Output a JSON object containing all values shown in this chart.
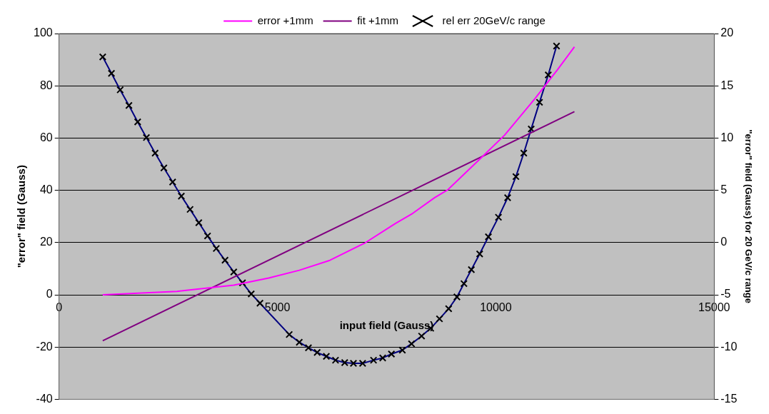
{
  "chart_data": {
    "type": "line",
    "xlabel": "input field (Gauss)",
    "ylabel": "\"error\" field (Gauss)",
    "y2label": "\"error\" field (Gauss) for 20 GeV/c range",
    "xlim": [
      0,
      15000
    ],
    "xticks": [
      0,
      5000,
      10000,
      15000
    ],
    "ylim": [
      -40,
      100
    ],
    "yticks": [
      -40,
      -20,
      0,
      20,
      40,
      60,
      80,
      100
    ],
    "y2lim": [
      -15,
      20
    ],
    "y2ticks": [
      -15,
      -10,
      -5,
      0,
      5,
      10,
      15,
      20
    ],
    "grid": "y",
    "legend": "top",
    "line_style": "solid",
    "series": [
      {
        "name": "error +1mm",
        "color": "#ff00ff",
        "marker": "none",
        "x": [
          1000,
          2700,
          4000,
          4800,
          5500,
          6200,
          7000,
          7700,
          8100,
          8600,
          8900,
          9700,
          10200,
          10900,
          11400,
          11800
        ],
        "values": [
          0,
          1.3,
          3.7,
          6.4,
          9.4,
          13.2,
          19.8,
          27.3,
          31.2,
          37.2,
          40.2,
          53,
          61.1,
          75.2,
          85.9,
          94.9
        ]
      },
      {
        "name": "fit +1mm",
        "color": "#800080",
        "marker": "none",
        "x": [
          1000,
          11800
        ],
        "values": [
          -17.6,
          70.1
        ]
      },
      {
        "name": "rel err 20GeV/c range",
        "color": "#000080",
        "marker": "cross",
        "axis": "y2",
        "x": [
          1000,
          1200,
          1400,
          1600,
          1800,
          2000,
          2200,
          2400,
          2600,
          2800,
          3000,
          3200,
          3400,
          3600,
          3800,
          4000,
          4200,
          4400,
          4600,
          5270,
          5500,
          5710,
          5910,
          6120,
          6330,
          6540,
          6740,
          6950,
          7200,
          7410,
          7610,
          7860,
          8070,
          8300,
          8510,
          8710,
          8920,
          9110,
          9270,
          9440,
          9630,
          9830,
          10060,
          10270,
          10460,
          10640,
          10810,
          11000,
          11200,
          11390
        ],
        "values": [
          17.76,
          16.19,
          14.61,
          13.12,
          11.55,
          10.05,
          8.56,
          7.14,
          5.79,
          4.44,
          3.17,
          1.9,
          0.63,
          -0.57,
          -1.69,
          -2.81,
          -3.86,
          -4.91,
          -5.8,
          -8.8,
          -9.54,
          -10.07,
          -10.52,
          -10.89,
          -11.26,
          -11.49,
          -11.56,
          -11.56,
          -11.26,
          -11.04,
          -10.67,
          -10.29,
          -9.69,
          -8.95,
          -8.2,
          -7.3,
          -6.33,
          -5.21,
          -3.93,
          -2.59,
          -1.09,
          0.55,
          2.42,
          4.29,
          6.31,
          8.56,
          10.87,
          13.42,
          16.04,
          18.8
        ]
      }
    ]
  }
}
